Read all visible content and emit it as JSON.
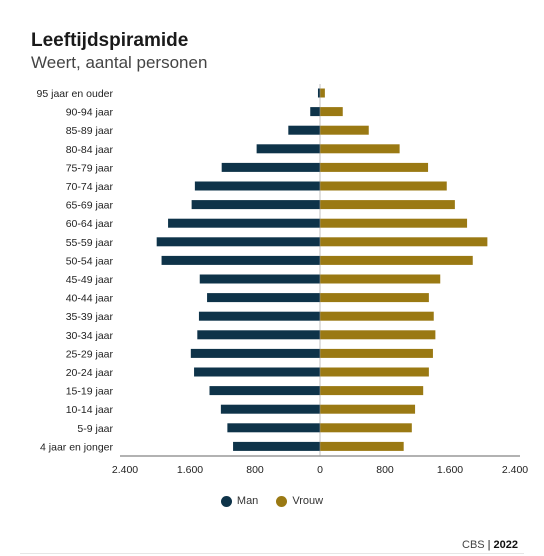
{
  "chart_data": {
    "type": "bar",
    "orientation": "horizontal",
    "title": "Leeftijdspiramide",
    "subtitle": "Weert, aantal personen",
    "categories": [
      "95 jaar en ouder",
      "90-94 jaar",
      "85-89 jaar",
      "80-84 jaar",
      "75-79 jaar",
      "70-74 jaar",
      "65-69 jaar",
      "60-64 jaar",
      "55-59 jaar",
      "50-54 jaar",
      "45-49 jaar",
      "40-44 jaar",
      "35-39 jaar",
      "30-34 jaar",
      "25-29 jaar",
      "20-24 jaar",
      "15-19 jaar",
      "10-14 jaar",
      "5-9 jaar",
      "4 jaar en jonger"
    ],
    "series": [
      {
        "name": "Man",
        "color": "#0e3349",
        "values": [
          25,
          120,
          390,
          780,
          1210,
          1540,
          1580,
          1870,
          2010,
          1950,
          1480,
          1390,
          1490,
          1510,
          1590,
          1550,
          1360,
          1220,
          1140,
          1070
        ]
      },
      {
        "name": "Vrouw",
        "color": "#9a7913",
        "values": [
          60,
          280,
          600,
          980,
          1330,
          1560,
          1660,
          1810,
          2060,
          1880,
          1480,
          1340,
          1400,
          1420,
          1390,
          1340,
          1270,
          1170,
          1130,
          1030
        ]
      }
    ],
    "xlim": [
      -2400,
      2400
    ],
    "x_ticks": [
      -2400,
      -1600,
      -800,
      0,
      800,
      1600,
      2400
    ],
    "x_tick_labels": [
      "2.400",
      "1.600",
      "800",
      "0",
      "800",
      "1.600",
      "2.400"
    ],
    "legend_position": "bottom-center",
    "grid": false
  },
  "footer": {
    "source": "CBS",
    "separator": "|",
    "year": "2022"
  }
}
